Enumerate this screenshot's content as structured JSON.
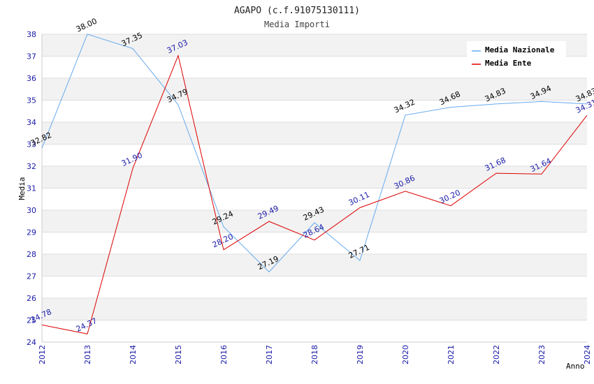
{
  "chart_data": {
    "type": "line",
    "title": "AGAPO (c.f.91075130111)",
    "subtitle": "Media Importi",
    "xlabel": "Anno",
    "ylabel": "Media",
    "x": [
      "2012",
      "2013",
      "2014",
      "2015",
      "2016",
      "2017",
      "2018",
      "2019",
      "2020",
      "2021",
      "2022",
      "2023",
      "2024"
    ],
    "ylim": [
      24,
      38
    ],
    "yticks": [
      "24",
      "25",
      "26",
      "27",
      "28",
      "29",
      "30",
      "31",
      "32",
      "33",
      "34",
      "35",
      "36",
      "37",
      "38"
    ],
    "grid": true,
    "legend_position": "top-right",
    "series": [
      {
        "name": "Media Nazionale",
        "color": "#66aaee",
        "values": [
          32.82,
          38.0,
          37.35,
          34.79,
          29.24,
          27.19,
          29.43,
          27.71,
          34.32,
          34.68,
          34.83,
          34.94,
          34.83
        ],
        "labels": [
          "32.82",
          "38.00",
          "37.35",
          "34.79",
          "29.24",
          "27.19",
          "29.43",
          "27.71",
          "34.32",
          "34.68",
          "34.83",
          "34.94",
          "34.83"
        ]
      },
      {
        "name": "Media Ente",
        "color": "#dd0000",
        "values": [
          24.78,
          24.37,
          31.9,
          37.03,
          28.2,
          29.49,
          28.64,
          30.11,
          30.86,
          30.2,
          31.68,
          31.64,
          34.31
        ],
        "labels": [
          "24.78",
          "24.37",
          "31.90",
          "37.03",
          "28.20",
          "29.49",
          "28.64",
          "30.11",
          "30.86",
          "30.20",
          "31.68",
          "31.64",
          "34.31"
        ]
      }
    ]
  }
}
